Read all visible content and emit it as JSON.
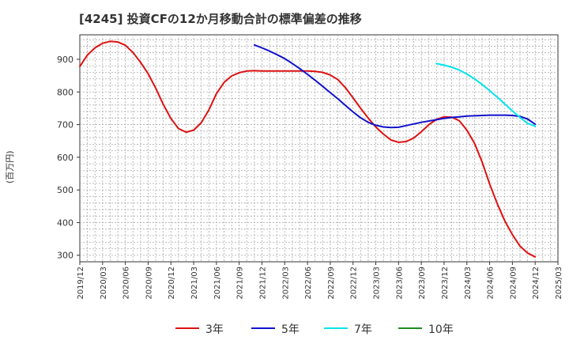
{
  "chart_data": {
    "type": "line",
    "title": "[4245]  投資CFの12か月移動合計の標準偏差の推移",
    "ylabel": "(百万円)",
    "xlabel": "",
    "ylim": [
      280,
      975
    ],
    "y_ticks": [
      300,
      400,
      500,
      600,
      700,
      800,
      900
    ],
    "x_ticks": [
      "2019/12",
      "2020/03",
      "2020/06",
      "2020/09",
      "2020/12",
      "2021/03",
      "2021/06",
      "2021/09",
      "2021/12",
      "2022/03",
      "2022/06",
      "2022/09",
      "2022/12",
      "2023/03",
      "2023/06",
      "2023/09",
      "2023/12",
      "2024/03",
      "2024/06",
      "2024/09",
      "2024/12",
      "2025/03"
    ],
    "grid": true,
    "legend_position": "bottom",
    "series": [
      {
        "name": "3年",
        "color": "#dd1111",
        "x": [
          "2019/12",
          "2020/01",
          "2020/02",
          "2020/03",
          "2020/04",
          "2020/05",
          "2020/06",
          "2020/07",
          "2020/08",
          "2020/09",
          "2020/10",
          "2020/11",
          "2020/12",
          "2021/01",
          "2021/02",
          "2021/03",
          "2021/04",
          "2021/05",
          "2021/06",
          "2021/07",
          "2021/08",
          "2021/09",
          "2021/10",
          "2021/11",
          "2021/12",
          "2022/01",
          "2022/02",
          "2022/03",
          "2022/04",
          "2022/05",
          "2022/06",
          "2022/07",
          "2022/08",
          "2022/09",
          "2022/10",
          "2022/11",
          "2022/12",
          "2023/01",
          "2023/02",
          "2023/03",
          "2023/04",
          "2023/05",
          "2023/06",
          "2023/07",
          "2023/08",
          "2023/09",
          "2023/10",
          "2023/11",
          "2023/12",
          "2024/01",
          "2024/02",
          "2024/03",
          "2024/04",
          "2024/05",
          "2024/06",
          "2024/07",
          "2024/08",
          "2024/09",
          "2024/10",
          "2024/11",
          "2024/12"
        ],
        "values": [
          878,
          913,
          935,
          949,
          955,
          953,
          943,
          921,
          891,
          856,
          812,
          762,
          719,
          688,
          677,
          683,
          706,
          745,
          795,
          829,
          849,
          859,
          864,
          865,
          864,
          864,
          864,
          864,
          864,
          864,
          864,
          863,
          860,
          852,
          838,
          813,
          782,
          750,
          720,
          693,
          671,
          653,
          646,
          648,
          659,
          678,
          700,
          716,
          724,
          723,
          712,
          683,
          643,
          586,
          518,
          458,
          405,
          363,
          328,
          307,
          295
        ]
      },
      {
        "name": "5年",
        "color": "#1111cc",
        "x": [
          "2021/11",
          "2021/12",
          "2022/01",
          "2022/02",
          "2022/03",
          "2022/04",
          "2022/05",
          "2022/06",
          "2022/07",
          "2022/08",
          "2022/09",
          "2022/10",
          "2022/11",
          "2022/12",
          "2023/01",
          "2023/02",
          "2023/03",
          "2023/04",
          "2023/05",
          "2023/06",
          "2023/07",
          "2023/08",
          "2023/09",
          "2023/10",
          "2023/11",
          "2023/12",
          "2024/01",
          "2024/02",
          "2024/03",
          "2024/04",
          "2024/05",
          "2024/06",
          "2024/07",
          "2024/08",
          "2024/09",
          "2024/10",
          "2024/11",
          "2024/12"
        ],
        "values": [
          944,
          935,
          925,
          914,
          902,
          887,
          871,
          854,
          836,
          817,
          798,
          779,
          759,
          739,
          721,
          707,
          698,
          693,
          691,
          692,
          697,
          702,
          707,
          711,
          715,
          719,
          722,
          724,
          726,
          727,
          728,
          729,
          729,
          729,
          728,
          725,
          717,
          701
        ]
      },
      {
        "name": "7年",
        "color": "#00e5ee",
        "x": [
          "2023/11",
          "2023/12",
          "2024/01",
          "2024/02",
          "2024/03",
          "2024/04",
          "2024/05",
          "2024/06",
          "2024/07",
          "2024/08",
          "2024/09",
          "2024/10",
          "2024/11",
          "2024/12"
        ],
        "values": [
          887,
          882,
          876,
          867,
          855,
          840,
          823,
          804,
          784,
          763,
          742,
          722,
          704,
          695
        ]
      },
      {
        "name": "10年",
        "color": "#228b22",
        "x": [],
        "values": []
      }
    ]
  }
}
